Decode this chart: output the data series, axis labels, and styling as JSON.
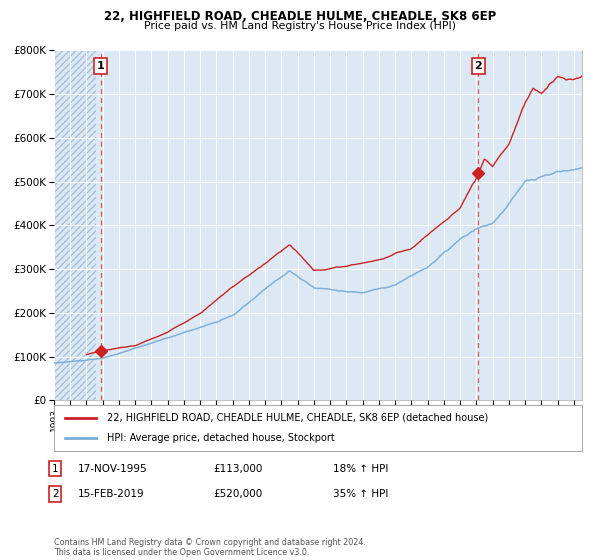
{
  "title1": "22, HIGHFIELD ROAD, CHEADLE HULME, CHEADLE, SK8 6EP",
  "title2": "Price paid vs. HM Land Registry's House Price Index (HPI)",
  "legend1": "22, HIGHFIELD ROAD, CHEADLE HULME, CHEADLE, SK8 6EP (detached house)",
  "legend2": "HPI: Average price, detached house, Stockport",
  "annotation1_date": "17-NOV-1995",
  "annotation1_price": "£113,000",
  "annotation1_hpi": "18% ↑ HPI",
  "annotation2_date": "15-FEB-2019",
  "annotation2_price": "£520,000",
  "annotation2_hpi": "35% ↑ HPI",
  "sale1_x": 1995.88,
  "sale1_y": 113000,
  "sale2_x": 2019.12,
  "sale2_y": 520000,
  "hpi_color": "#7aaed6",
  "property_color": "#cc2222",
  "vline_color": "#cc4444",
  "background_color": "#dce9f5",
  "grid_color": "#ffffff",
  "box_color": "#cc2222",
  "footer": "Contains HM Land Registry data © Crown copyright and database right 2024.\nThis data is licensed under the Open Government Licence v3.0.",
  "ylim": [
    0,
    800000
  ],
  "xlim_start": 1993.0,
  "xlim_end": 2025.5
}
